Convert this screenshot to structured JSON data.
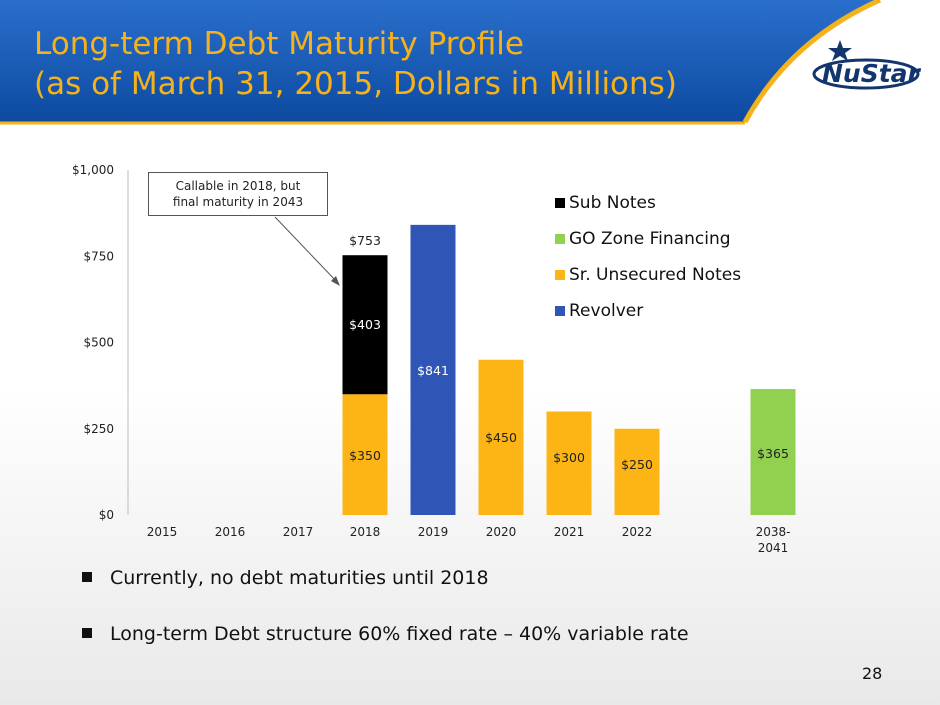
{
  "slide": {
    "title_line1": "Long-term Debt Maturity Profile",
    "title_line2": "(as of March 31, 2015, Dollars in Millions)",
    "logo_text": "NuStar",
    "page_number": "28",
    "colors": {
      "header_blue": "#1a5fb8",
      "title_gold": "#f5b21a",
      "logo_navy": "#13356e"
    }
  },
  "callout": {
    "line1": "Callable in 2018, but",
    "line2": "final maturity in 2043"
  },
  "bullets": [
    "Currently, no debt maturities until 2018",
    "Long-term Debt structure 60% fixed rate – 40% variable rate"
  ],
  "chart_data": {
    "type": "bar",
    "stacked": true,
    "categories": [
      "2015",
      "2016",
      "2017",
      "2018",
      "2019",
      "2020",
      "2021",
      "2022",
      "2038-2041"
    ],
    "category_lines": [
      [
        "2015"
      ],
      [
        "2016"
      ],
      [
        "2017"
      ],
      [
        "2018"
      ],
      [
        "2019"
      ],
      [
        "2020"
      ],
      [
        "2021"
      ],
      [
        "2022"
      ],
      [
        "2038-",
        "2041"
      ]
    ],
    "y_ticks": [
      "$0",
      "$250",
      "$500",
      "$750",
      "$1,000"
    ],
    "y_tick_values": [
      0,
      250,
      500,
      750,
      1000
    ],
    "ylim": [
      0,
      1000
    ],
    "legend_position": "top-right",
    "series": [
      {
        "name": "Revolver",
        "color": "#2f55b6",
        "label_color": "#ffffff",
        "values": [
          0,
          0,
          0,
          0,
          841,
          0,
          0,
          0,
          0
        ],
        "labels": [
          "",
          "",
          "",
          "",
          "$841",
          "",
          "",
          "",
          ""
        ]
      },
      {
        "name": "Sr. Unsecured Notes",
        "color": "#fdb515",
        "label_color": "#222222",
        "values": [
          0,
          0,
          0,
          350,
          0,
          450,
          300,
          250,
          0
        ],
        "labels": [
          "",
          "",
          "",
          "$350",
          "",
          "$450",
          "$300",
          "$250",
          ""
        ]
      },
      {
        "name": "GO Zone Financing",
        "color": "#92d050",
        "label_color": "#222222",
        "values": [
          0,
          0,
          0,
          0,
          0,
          0,
          0,
          0,
          365
        ],
        "labels": [
          "",
          "",
          "",
          "",
          "",
          "",
          "",
          "",
          "$365"
        ]
      },
      {
        "name": "Sub Notes",
        "color": "#000000",
        "label_color": "#ffffff",
        "values": [
          0,
          0,
          0,
          403,
          0,
          0,
          0,
          0,
          0
        ],
        "labels": [
          "",
          "",
          "",
          "$403",
          "",
          "",
          "",
          "",
          ""
        ]
      }
    ],
    "legend_order": [
      "Sub Notes",
      "GO Zone Financing",
      "Sr. Unsecured Notes",
      "Revolver"
    ],
    "totals": [
      "",
      "",
      "",
      "$753",
      "",
      "",
      "",
      "",
      ""
    ]
  }
}
